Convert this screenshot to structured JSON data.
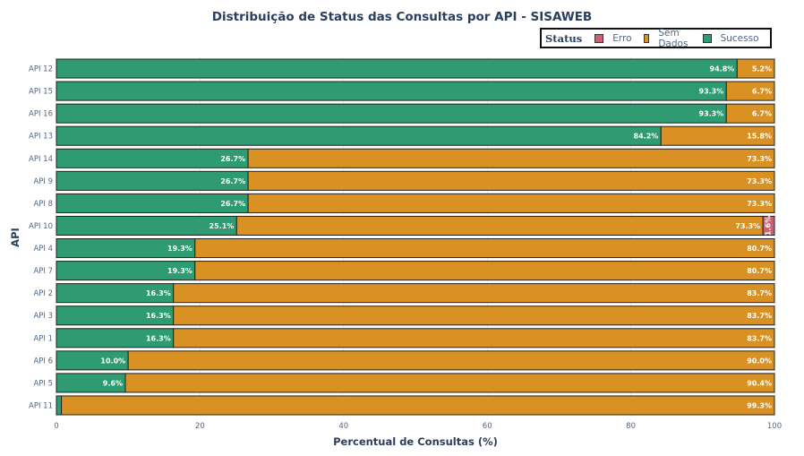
{
  "chart_data": {
    "type": "bar",
    "orientation": "horizontal",
    "barmode": "stack",
    "title": "Distribuição de Status das Consultas por API - SISAWEB",
    "xlabel": "Percentual de Consultas (%)",
    "ylabel": "API",
    "xlim": [
      0,
      100
    ],
    "xticks": [
      0,
      20,
      40,
      60,
      80,
      100
    ],
    "grid": true,
    "legend": {
      "title": "Status",
      "placement": "top-right"
    },
    "categories": [
      "API 12",
      "API 15",
      "API 16",
      "API 13",
      "API 14",
      "API 9",
      "API 8",
      "API 10",
      "API 4",
      "API 7",
      "API 2",
      "API 3",
      "API 1",
      "API 6",
      "API 5",
      "API 11"
    ],
    "series": [
      {
        "name": "Sucesso",
        "color": "#2e9b72",
        "values": [
          94.8,
          93.3,
          93.3,
          84.2,
          26.7,
          26.7,
          26.7,
          25.1,
          19.3,
          19.3,
          16.3,
          16.3,
          16.3,
          10.0,
          9.6,
          0.7
        ],
        "labels": [
          "94.8%",
          "93.3%",
          "93.3%",
          "84.2%",
          "26.7%",
          "26.7%",
          "26.7%",
          "25.1%",
          "19.3%",
          "19.3%",
          "16.3%",
          "16.3%",
          "16.3%",
          "10.0%",
          "9.6%",
          ""
        ]
      },
      {
        "name": "Sem Dados",
        "color": "#d89122",
        "values": [
          5.2,
          6.7,
          6.7,
          15.8,
          73.3,
          73.3,
          73.3,
          73.3,
          80.7,
          80.7,
          83.7,
          83.7,
          83.7,
          90.0,
          90.4,
          99.3
        ],
        "labels": [
          "5.2%",
          "6.7%",
          "6.7%",
          "15.8%",
          "73.3%",
          "73.3%",
          "73.3%",
          "73.3%",
          "80.7%",
          "80.7%",
          "83.7%",
          "83.7%",
          "83.7%",
          "90.0%",
          "90.4%",
          "99.3%"
        ]
      },
      {
        "name": "Erro",
        "color": "#c96272",
        "values": [
          0,
          0,
          0,
          0,
          0,
          0,
          0,
          1.6,
          0,
          0,
          0,
          0,
          0,
          0,
          0,
          0
        ],
        "labels": [
          "",
          "",
          "",
          "",
          "",
          "",
          "",
          "1.6%",
          "",
          "",
          "",
          "",
          "",
          "",
          "",
          ""
        ]
      }
    ],
    "legend_order": [
      "Erro",
      "Sem Dados",
      "Sucesso"
    ]
  }
}
